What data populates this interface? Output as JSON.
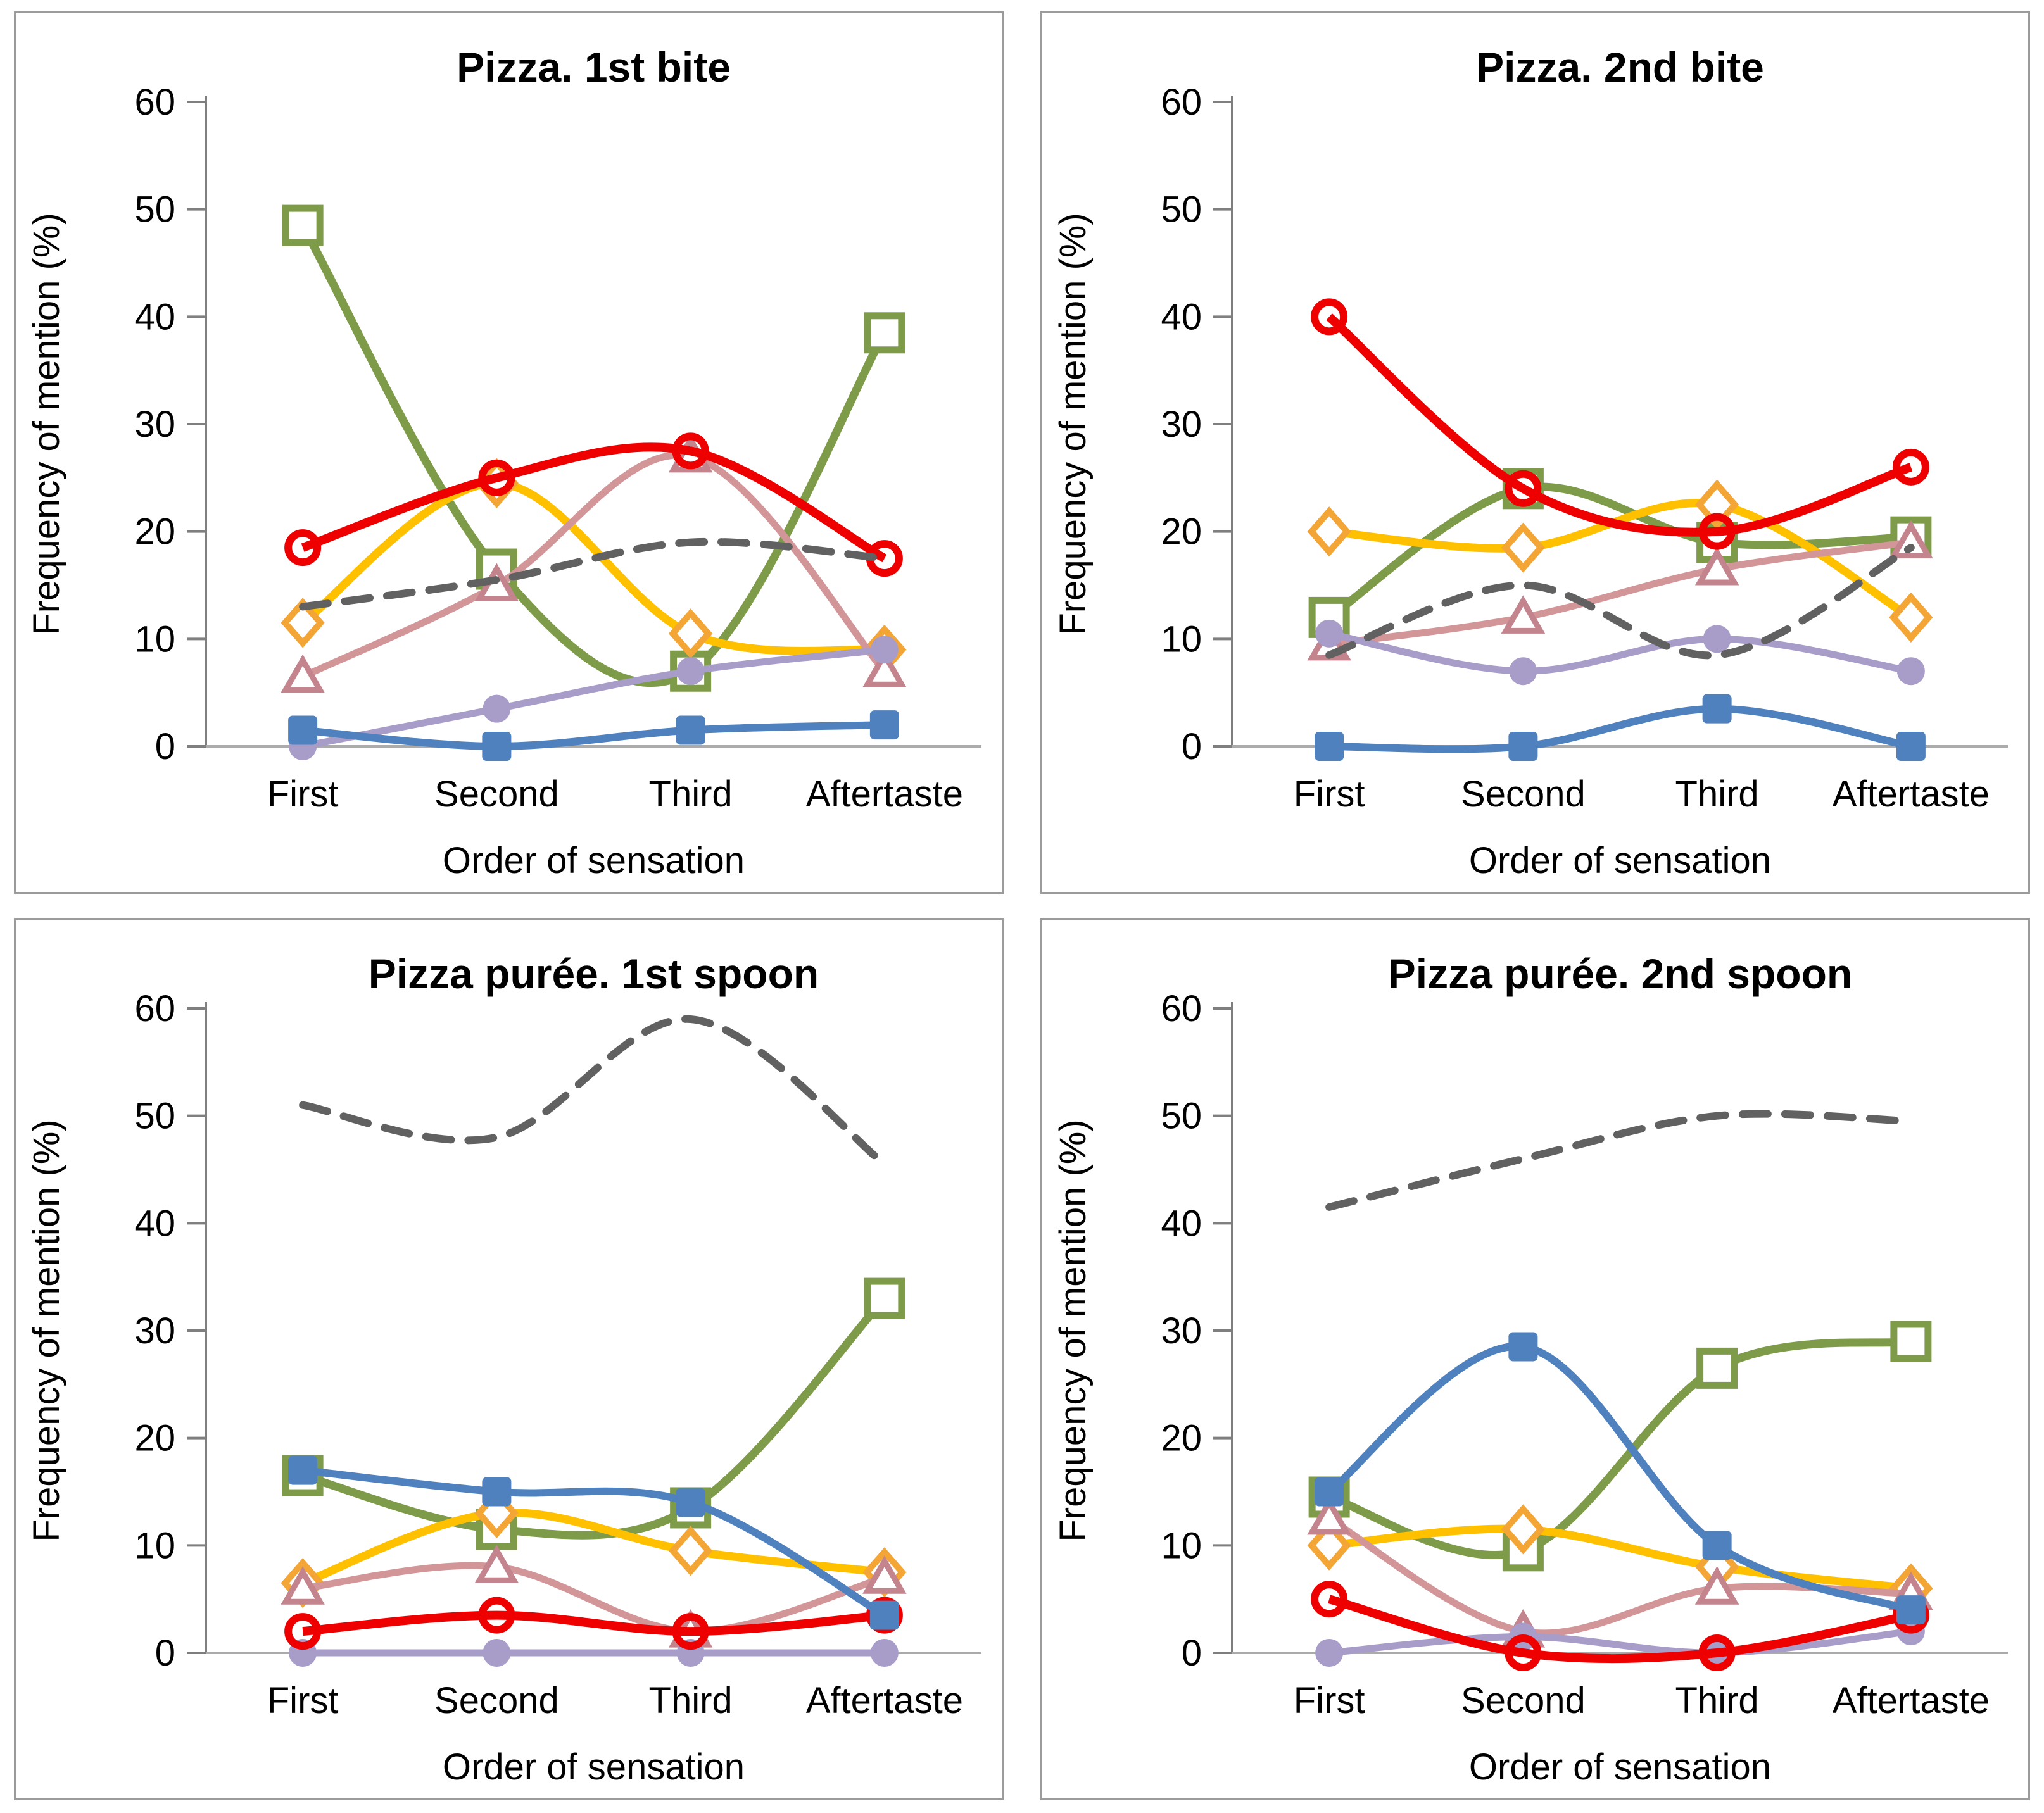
{
  "figure": {
    "background": "#ffffff",
    "panel_border_color": "#9b9b9b",
    "text_color": "#000000",
    "y_axis_color": "#7f7f7f",
    "x_axis_color": "#ababab"
  },
  "chart_data": [
    {
      "type": "line",
      "title": "Pizza. 1st bite",
      "xlabel": "Order of sensation",
      "ylabel": "Frequency of mention (%)",
      "categories": [
        "First",
        "Second",
        "Third",
        "Aftertaste"
      ],
      "ylim": [
        0,
        60
      ],
      "ytick_step": 10,
      "grid": false,
      "legend": "none",
      "line_style": "smooth",
      "series": [
        {
          "id": "green-open-square",
          "marker": "open-square",
          "color": "#7d9b49",
          "marker_stroke": "#7d9b49",
          "dashed": false,
          "values": [
            48.5,
            16.5,
            7,
            38.5
          ]
        },
        {
          "id": "yellow-open-diamond",
          "marker": "open-diamond",
          "color": "#ffc000",
          "marker_stroke": "#f3a536",
          "dashed": false,
          "values": [
            11.5,
            24.5,
            10.5,
            9
          ]
        },
        {
          "id": "pink-open-triangle",
          "marker": "open-triangle",
          "color": "#d29699",
          "marker_stroke": "#c3848d",
          "dashed": false,
          "values": [
            6.5,
            15,
            27,
            7
          ]
        },
        {
          "id": "purple-filled-circle",
          "marker": "filled-circle",
          "color": "#a89cc8",
          "marker_stroke": "#a89cc8",
          "dashed": false,
          "values": [
            0,
            3.5,
            7,
            9
          ]
        },
        {
          "id": "red-open-circle",
          "marker": "open-circle",
          "color": "#ee0000",
          "marker_stroke": "#ee0000",
          "dashed": false,
          "values": [
            18.5,
            25,
            27.5,
            17.5
          ]
        },
        {
          "id": "blue-filled-square",
          "marker": "filled-square",
          "color": "#4e81bd",
          "marker_stroke": "#4e81bd",
          "dashed": false,
          "values": [
            1.5,
            0,
            1.5,
            2
          ]
        },
        {
          "id": "gray-dashed",
          "marker": "none",
          "color": "#616161",
          "marker_stroke": "#616161",
          "dashed": true,
          "values": [
            13,
            15.5,
            19,
            17.5
          ]
        }
      ]
    },
    {
      "type": "line",
      "title": "Pizza. 2nd bite",
      "xlabel": "Order of sensation",
      "ylabel": "Frequency of mention (%)",
      "categories": [
        "First",
        "Second",
        "Third",
        "Aftertaste"
      ],
      "ylim": [
        0,
        60
      ],
      "ytick_step": 10,
      "grid": false,
      "legend": "none",
      "line_style": "smooth",
      "series": [
        {
          "id": "green-open-square",
          "marker": "open-square",
          "color": "#7d9b49",
          "marker_stroke": "#7d9b49",
          "dashed": false,
          "values": [
            12,
            24,
            19,
            19.5
          ]
        },
        {
          "id": "yellow-open-diamond",
          "marker": "open-diamond",
          "color": "#ffc000",
          "marker_stroke": "#f3a536",
          "dashed": false,
          "values": [
            20,
            18.5,
            22.5,
            12
          ]
        },
        {
          "id": "pink-open-triangle",
          "marker": "open-triangle",
          "color": "#d29699",
          "marker_stroke": "#c3848d",
          "dashed": false,
          "values": [
            9.5,
            12,
            16.5,
            19
          ]
        },
        {
          "id": "purple-filled-circle",
          "marker": "filled-circle",
          "color": "#a89cc8",
          "marker_stroke": "#a89cc8",
          "dashed": false,
          "values": [
            10.5,
            7,
            10,
            7
          ]
        },
        {
          "id": "red-open-circle",
          "marker": "open-circle",
          "color": "#ee0000",
          "marker_stroke": "#ee0000",
          "dashed": false,
          "values": [
            40,
            24,
            20,
            26
          ]
        },
        {
          "id": "blue-filled-square",
          "marker": "filled-square",
          "color": "#4e81bd",
          "marker_stroke": "#4e81bd",
          "dashed": false,
          "values": [
            0,
            0,
            3.5,
            0
          ]
        },
        {
          "id": "gray-dashed",
          "marker": "none",
          "color": "#616161",
          "marker_stroke": "#616161",
          "dashed": true,
          "values": [
            8.5,
            15,
            8.5,
            18.5
          ]
        }
      ]
    },
    {
      "type": "line",
      "title": "Pizza purée. 1st spoon",
      "xlabel": "Order of sensation",
      "ylabel": "Frequency of mention (%)",
      "categories": [
        "First",
        "Second",
        "Third",
        "Aftertaste"
      ],
      "ylim": [
        0,
        60
      ],
      "ytick_step": 10,
      "grid": false,
      "legend": "none",
      "line_style": "smooth",
      "series": [
        {
          "id": "green-open-square",
          "marker": "open-square",
          "color": "#7d9b49",
          "marker_stroke": "#7d9b49",
          "dashed": false,
          "values": [
            16.5,
            11.5,
            13.5,
            33
          ]
        },
        {
          "id": "yellow-open-diamond",
          "marker": "open-diamond",
          "color": "#ffc000",
          "marker_stroke": "#f3a536",
          "dashed": false,
          "values": [
            6.5,
            13,
            9.5,
            7.5
          ]
        },
        {
          "id": "pink-open-triangle",
          "marker": "open-triangle",
          "color": "#d29699",
          "marker_stroke": "#c3848d",
          "dashed": false,
          "values": [
            6,
            8,
            2,
            7
          ]
        },
        {
          "id": "purple-filled-circle",
          "marker": "filled-circle",
          "color": "#a89cc8",
          "marker_stroke": "#a89cc8",
          "dashed": false,
          "values": [
            0,
            0,
            0,
            0
          ]
        },
        {
          "id": "red-open-circle",
          "marker": "open-circle",
          "color": "#ee0000",
          "marker_stroke": "#ee0000",
          "dashed": false,
          "values": [
            2,
            3.5,
            2,
            3.5
          ]
        },
        {
          "id": "blue-filled-square",
          "marker": "filled-square",
          "color": "#4e81bd",
          "marker_stroke": "#4e81bd",
          "dashed": false,
          "values": [
            17,
            15,
            14,
            3.5
          ]
        },
        {
          "id": "gray-dashed",
          "marker": "none",
          "color": "#616161",
          "marker_stroke": "#616161",
          "dashed": true,
          "values": [
            51,
            48,
            59,
            45.5
          ]
        }
      ]
    },
    {
      "type": "line",
      "title": "Pizza purée. 2nd spoon",
      "xlabel": "Order of sensation",
      "ylabel": "Frequency of mention (%)",
      "categories": [
        "First",
        "Second",
        "Third",
        "Aftertaste"
      ],
      "ylim": [
        0,
        60
      ],
      "ytick_step": 10,
      "grid": false,
      "legend": "none",
      "line_style": "smooth",
      "series": [
        {
          "id": "green-open-square",
          "marker": "open-square",
          "color": "#7d9b49",
          "marker_stroke": "#7d9b49",
          "dashed": false,
          "values": [
            14.5,
            9.5,
            26.5,
            29
          ]
        },
        {
          "id": "yellow-open-diamond",
          "marker": "open-diamond",
          "color": "#ffc000",
          "marker_stroke": "#f3a536",
          "dashed": false,
          "values": [
            10,
            11.5,
            8,
            6
          ]
        },
        {
          "id": "pink-open-triangle",
          "marker": "open-triangle",
          "color": "#d29699",
          "marker_stroke": "#c3848d",
          "dashed": false,
          "values": [
            12.5,
            2,
            6,
            5.5
          ]
        },
        {
          "id": "purple-filled-circle",
          "marker": "filled-circle",
          "color": "#a89cc8",
          "marker_stroke": "#a89cc8",
          "dashed": false,
          "values": [
            0,
            1.5,
            0,
            2
          ]
        },
        {
          "id": "red-open-circle",
          "marker": "open-circle",
          "color": "#ee0000",
          "marker_stroke": "#ee0000",
          "dashed": false,
          "values": [
            5,
            0,
            0,
            3.5
          ]
        },
        {
          "id": "blue-filled-square",
          "marker": "filled-square",
          "color": "#4e81bd",
          "marker_stroke": "#4e81bd",
          "dashed": false,
          "values": [
            15,
            28.5,
            10,
            4
          ]
        },
        {
          "id": "gray-dashed",
          "marker": "none",
          "color": "#616161",
          "marker_stroke": "#616161",
          "dashed": true,
          "values": [
            41.5,
            46,
            50,
            49.5
          ]
        }
      ]
    }
  ]
}
